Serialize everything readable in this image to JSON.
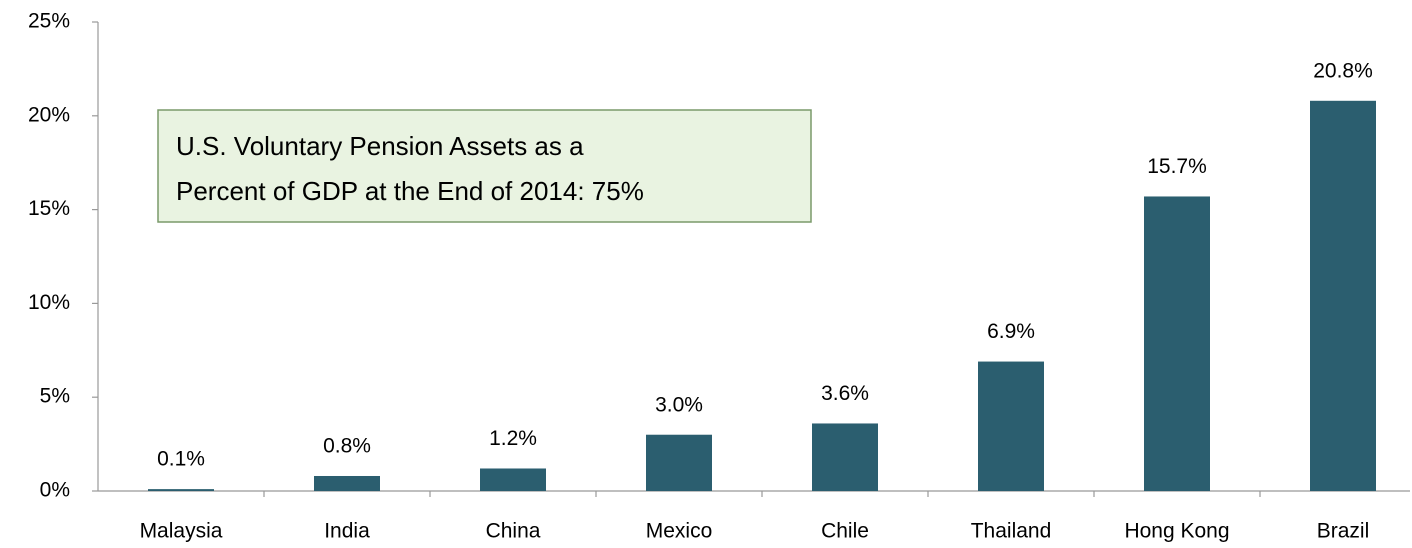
{
  "chart_data": {
    "type": "bar",
    "annotation": [
      "U.S. Voluntary Pension Assets as a",
      "Percent of GDP at the End of 2014: 75%"
    ],
    "categories": [
      "Malaysia",
      "India",
      "China",
      "Mexico",
      "Chile",
      "Thailand",
      "Hong Kong",
      "Brazil"
    ],
    "values": [
      0.1,
      0.8,
      1.2,
      3.0,
      3.6,
      6.9,
      15.7,
      20.8
    ],
    "value_labels": [
      "0.1%",
      "0.8%",
      "1.2%",
      "3.0%",
      "3.6%",
      "6.9%",
      "15.7%",
      "20.8%"
    ],
    "color": "#2b5e6f",
    "ylim": [
      0,
      25
    ],
    "yticks": [
      {
        "value": 0,
        "label": "0%"
      },
      {
        "value": 5,
        "label": "5%"
      },
      {
        "value": 10,
        "label": "10%"
      },
      {
        "value": 15,
        "label": "15%"
      },
      {
        "value": 20,
        "label": "20%"
      },
      {
        "value": 25,
        "label": "25%"
      }
    ],
    "grid": false
  }
}
